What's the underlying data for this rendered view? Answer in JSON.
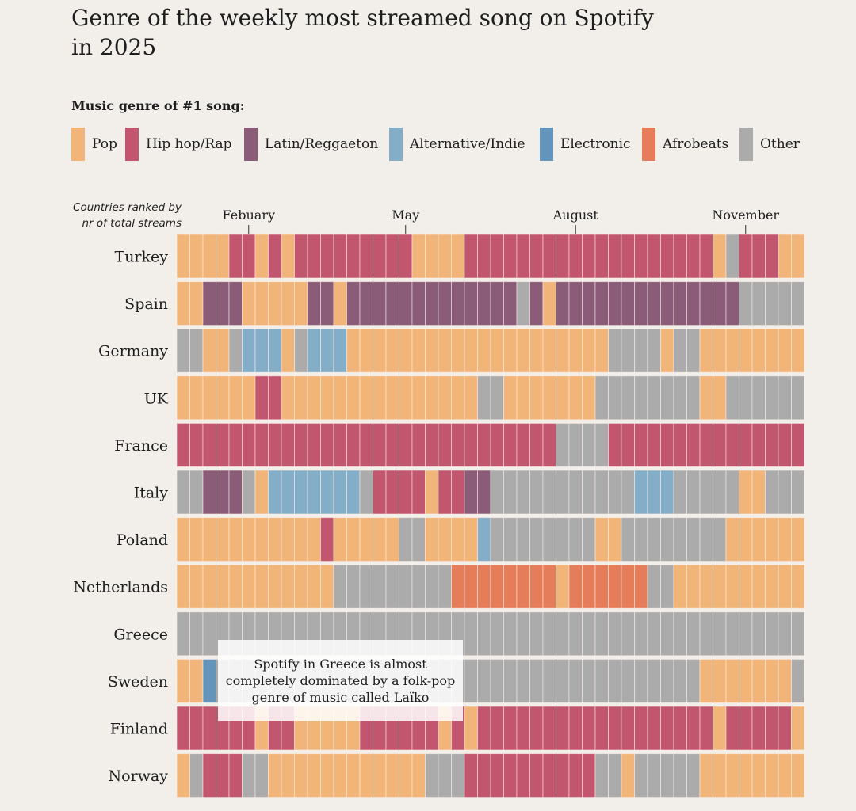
{
  "title": "Genre of the weekly most streamed song on Spotify in 2025",
  "legend": {
    "title": "Music genre of #1 song:",
    "items": [
      {
        "code": "P",
        "label": "Pop",
        "color": "#F1B57A"
      },
      {
        "code": "H",
        "label": "Hip hop/Rap",
        "color": "#C2566E"
      },
      {
        "code": "L",
        "label": "Latin/Reggaeton",
        "color": "#8A5C78"
      },
      {
        "code": "A",
        "label": "Alternative/Indie",
        "color": "#84AEC8"
      },
      {
        "code": "E",
        "label": "Electronic",
        "color": "#6594BB"
      },
      {
        "code": "F",
        "label": "Afrobeats",
        "color": "#E57D5A"
      },
      {
        "code": "O",
        "label": "Other",
        "color": "#ABABAB"
      }
    ]
  },
  "rank_note": [
    "Countries ranked by",
    "nr of total streams"
  ],
  "annotation": "Spotify in Greece is almost completely dominated by a folk-pop genre of music called Laïko",
  "chart_data": {
    "type": "heatmap",
    "x_unit": "week",
    "weeks": 48,
    "month_ticks": [
      {
        "label": "Febuary",
        "week": 6
      },
      {
        "label": "May",
        "week": 18
      },
      {
        "label": "August",
        "week": 31
      },
      {
        "label": "November",
        "week": 44
      }
    ],
    "rows": [
      {
        "country": "Turkey",
        "runs": [
          [
            "P",
            4
          ],
          [
            "H",
            2
          ],
          [
            "P",
            1
          ],
          [
            "H",
            1
          ],
          [
            "P",
            1
          ],
          [
            "H",
            9
          ],
          [
            "P",
            4
          ],
          [
            "H",
            19
          ],
          [
            "P",
            1
          ],
          [
            "O",
            1
          ],
          [
            "H",
            3
          ],
          [
            "P",
            2
          ]
        ]
      },
      {
        "country": "Spain",
        "runs": [
          [
            "P",
            2
          ],
          [
            "L",
            3
          ],
          [
            "P",
            5
          ],
          [
            "L",
            2
          ],
          [
            "P",
            1
          ],
          [
            "L",
            13
          ],
          [
            "O",
            1
          ],
          [
            "L",
            1
          ],
          [
            "P",
            1
          ],
          [
            "L",
            14
          ],
          [
            "O",
            5
          ]
        ]
      },
      {
        "country": "Germany",
        "runs": [
          [
            "O",
            2
          ],
          [
            "P",
            2
          ],
          [
            "O",
            1
          ],
          [
            "A",
            3
          ],
          [
            "P",
            1
          ],
          [
            "O",
            1
          ],
          [
            "A",
            3
          ],
          [
            "P",
            20
          ],
          [
            "O",
            4
          ],
          [
            "P",
            1
          ],
          [
            "O",
            2
          ],
          [
            "P",
            8
          ]
        ]
      },
      {
        "country": "UK",
        "runs": [
          [
            "P",
            6
          ],
          [
            "H",
            2
          ],
          [
            "P",
            15
          ],
          [
            "O",
            2
          ],
          [
            "P",
            7
          ],
          [
            "O",
            8
          ],
          [
            "P",
            2
          ],
          [
            "O",
            6
          ]
        ]
      },
      {
        "country": "France",
        "runs": [
          [
            "H",
            29
          ],
          [
            "O",
            4
          ],
          [
            "H",
            15
          ]
        ]
      },
      {
        "country": "Italy",
        "runs": [
          [
            "O",
            2
          ],
          [
            "L",
            3
          ],
          [
            "O",
            1
          ],
          [
            "P",
            1
          ],
          [
            "A",
            7
          ],
          [
            "O",
            1
          ],
          [
            "H",
            4
          ],
          [
            "P",
            1
          ],
          [
            "H",
            2
          ],
          [
            "L",
            2
          ],
          [
            "O",
            11
          ],
          [
            "A",
            3
          ],
          [
            "O",
            5
          ],
          [
            "P",
            2
          ],
          [
            "O",
            3
          ]
        ]
      },
      {
        "country": "Poland",
        "runs": [
          [
            "P",
            11
          ],
          [
            "H",
            1
          ],
          [
            "P",
            5
          ],
          [
            "O",
            2
          ],
          [
            "P",
            4
          ],
          [
            "A",
            1
          ],
          [
            "O",
            8
          ],
          [
            "P",
            2
          ],
          [
            "O",
            8
          ],
          [
            "P",
            6
          ]
        ]
      },
      {
        "country": "Netherlands",
        "runs": [
          [
            "P",
            12
          ],
          [
            "O",
            9
          ],
          [
            "F",
            8
          ],
          [
            "P",
            1
          ],
          [
            "F",
            6
          ],
          [
            "O",
            2
          ],
          [
            "P",
            10
          ]
        ]
      },
      {
        "country": "Greece",
        "runs": [
          [
            "O",
            48
          ]
        ]
      },
      {
        "country": "Sweden",
        "runs": [
          [
            "P",
            2
          ],
          [
            "E",
            1
          ],
          [
            "O",
            37
          ],
          [
            "P",
            7
          ],
          [
            "O",
            1
          ]
        ]
      },
      {
        "country": "Finland",
        "runs": [
          [
            "H",
            6
          ],
          [
            "P",
            1
          ],
          [
            "H",
            2
          ],
          [
            "P",
            5
          ],
          [
            "H",
            6
          ],
          [
            "P",
            1
          ],
          [
            "H",
            1
          ],
          [
            "P",
            1
          ],
          [
            "H",
            18
          ],
          [
            "P",
            1
          ],
          [
            "H",
            5
          ],
          [
            "P",
            1
          ]
        ]
      },
      {
        "country": "Norway",
        "runs": [
          [
            "P",
            1
          ],
          [
            "O",
            1
          ],
          [
            "H",
            3
          ],
          [
            "O",
            2
          ],
          [
            "P",
            12
          ],
          [
            "O",
            3
          ],
          [
            "H",
            10
          ],
          [
            "O",
            2
          ],
          [
            "P",
            1
          ],
          [
            "O",
            5
          ],
          [
            "P",
            8
          ]
        ]
      }
    ]
  }
}
